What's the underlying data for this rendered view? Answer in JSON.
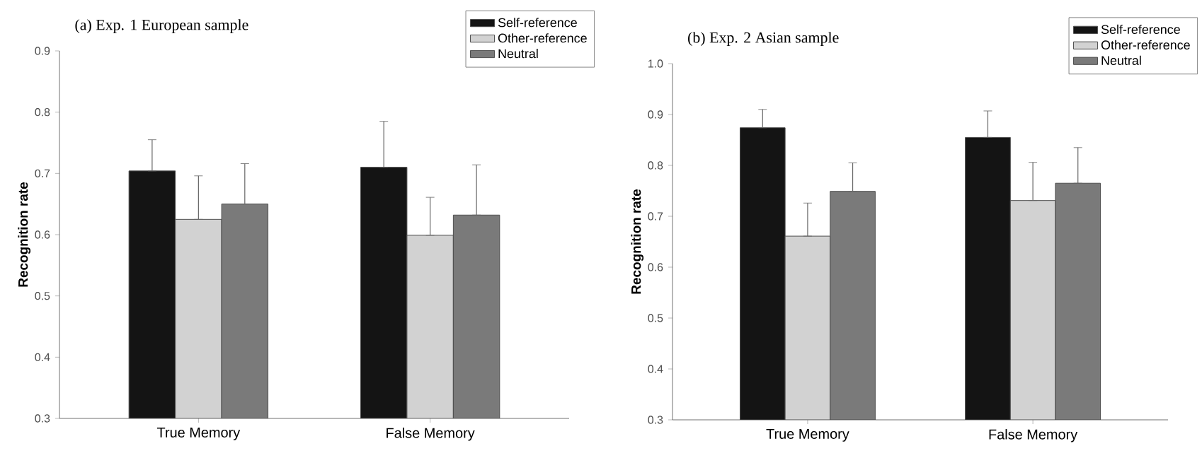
{
  "chart_data": [
    {
      "type": "bar",
      "title": "(a) Exp. 1 European sample",
      "ylabel": "Recognition rate",
      "categories": [
        "True Memory",
        "False Memory"
      ],
      "series": [
        {
          "name": "Self-reference",
          "color": "#141414",
          "values": [
            0.704,
            0.71
          ],
          "errors": [
            [
              0.704,
              0.755
            ],
            [
              0.71,
              0.785
            ]
          ]
        },
        {
          "name": "Other-reference",
          "color": "#d2d2d2",
          "values": [
            0.625,
            0.599
          ],
          "errors": [
            [
              0.625,
              0.696
            ],
            [
              0.599,
              0.661
            ]
          ]
        },
        {
          "name": "Neutral",
          "color": "#7a7a7a",
          "values": [
            0.65,
            0.632
          ],
          "errors": [
            [
              0.65,
              0.716
            ],
            [
              0.632,
              0.714
            ]
          ]
        }
      ],
      "ylim": [
        0.3,
        0.9
      ],
      "yticks": [
        0.3,
        0.4,
        0.5,
        0.6,
        0.7,
        0.8,
        0.9
      ],
      "legend": "top right",
      "grid": false
    },
    {
      "type": "bar",
      "title": "(b) Exp. 2 Asian sample",
      "ylabel": "Recognition rate",
      "categories": [
        "True Memory",
        "False Memory"
      ],
      "series": [
        {
          "name": "Self-reference",
          "color": "#141414",
          "values": [
            0.874,
            0.855
          ],
          "errors": [
            [
              0.874,
              0.91
            ],
            [
              0.855,
              0.907
            ]
          ]
        },
        {
          "name": "Other-reference",
          "color": "#d2d2d2",
          "values": [
            0.661,
            0.731
          ],
          "errors": [
            [
              0.661,
              0.726
            ],
            [
              0.731,
              0.806
            ]
          ]
        },
        {
          "name": "Neutral",
          "color": "#7a7a7a",
          "values": [
            0.749,
            0.765
          ],
          "errors": [
            [
              0.749,
              0.805
            ],
            [
              0.765,
              0.835
            ]
          ]
        }
      ],
      "ylim": [
        0.3,
        1.0
      ],
      "yticks": [
        0.3,
        0.4,
        0.5,
        0.6,
        0.7,
        0.8,
        0.9,
        {
          "value": 1.0,
          "label": "1.0"
        }
      ],
      "legend": "top right",
      "grid": false
    }
  ]
}
